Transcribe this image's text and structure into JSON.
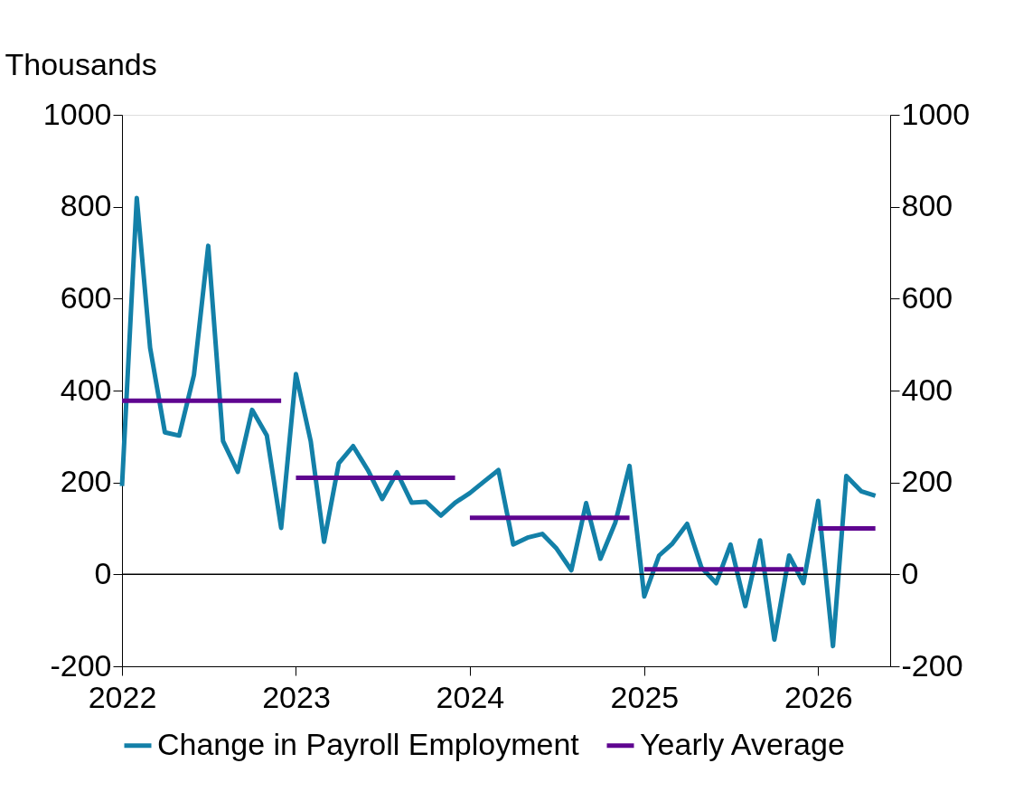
{
  "chart_data": {
    "type": "line",
    "ylabel": "Thousands",
    "x": [
      "2022-01",
      "2022-02",
      "2022-03",
      "2022-04",
      "2022-05",
      "2022-06",
      "2022-07",
      "2022-08",
      "2022-09",
      "2022-10",
      "2022-11",
      "2022-12",
      "2023-01",
      "2023-02",
      "2023-03",
      "2023-04",
      "2023-05",
      "2023-06",
      "2023-07",
      "2023-08",
      "2023-09",
      "2023-10",
      "2023-11",
      "2023-12",
      "2024-01",
      "2024-02",
      "2024-03",
      "2024-04",
      "2024-05",
      "2024-06",
      "2024-07",
      "2024-08",
      "2024-09",
      "2024-10",
      "2024-11",
      "2024-12",
      "2025-01",
      "2025-02",
      "2025-03",
      "2025-04",
      "2025-05",
      "2025-06",
      "2025-07",
      "2025-08",
      "2025-09",
      "2025-10",
      "2025-11",
      "2025-12",
      "2026-01",
      "2026-02",
      "2026-03",
      "2026-04",
      "2026-05"
    ],
    "series": [
      {
        "name": "Change in Payroll Employment",
        "color": "#1380a8",
        "values": [
          192,
          819,
          493,
          309,
          302,
          434,
          715,
          290,
          223,
          358,
          302,
          101,
          436,
          290,
          71,
          242,
          279,
          227,
          164,
          222,
          156,
          158,
          128,
          156,
          177,
          203,
          227,
          65,
          80,
          88,
          56,
          9,
          155,
          34,
          112,
          236,
          -48,
          41,
          67,
          110,
          15,
          -19,
          65,
          -69,
          74,
          -142,
          41,
          -19,
          160,
          -156,
          214,
          181,
          171
        ]
      },
      {
        "name": "Yearly Average",
        "color": "#5f0590",
        "x": [
          "2022-01",
          "2022-12"
        ],
        "values": [
          378,
          378
        ]
      },
      {
        "color": "#5f0590",
        "x": [
          "2023-01",
          "2023-12"
        ],
        "values": [
          210,
          210
        ]
      },
      {
        "color": "#5f0590",
        "x": [
          "2024-01",
          "2024-12"
        ],
        "values": [
          123,
          123
        ]
      },
      {
        "color": "#5f0590",
        "x": [
          "2025-01",
          "2025-12"
        ],
        "values": [
          11,
          11
        ]
      },
      {
        "color": "#5f0590",
        "x": [
          "2026-01",
          "2026-05"
        ],
        "values": [
          100,
          100
        ]
      }
    ],
    "xlim": [
      "2022-01",
      "2026-06"
    ],
    "xticks": [
      {
        "value": "2022-01",
        "label": "2022"
      },
      {
        "value": "2023-01",
        "label": "2023"
      },
      {
        "value": "2024-01",
        "label": "2024"
      },
      {
        "value": "2025-01",
        "label": "2025"
      },
      {
        "value": "2026-01",
        "label": "2026"
      }
    ],
    "ylim": [
      -200,
      1000
    ],
    "yticks": [
      -200,
      0,
      200,
      400,
      600,
      800,
      1000
    ],
    "y2lim": [
      -200,
      1000
    ],
    "y2ticks": [
      -200,
      0,
      200,
      400,
      600,
      800,
      1000
    ],
    "ref_lines": [
      {
        "axis": "y",
        "value": 0
      }
    ],
    "grid": false,
    "legend": "bottom",
    "marker": "none",
    "line_style": "solid"
  }
}
